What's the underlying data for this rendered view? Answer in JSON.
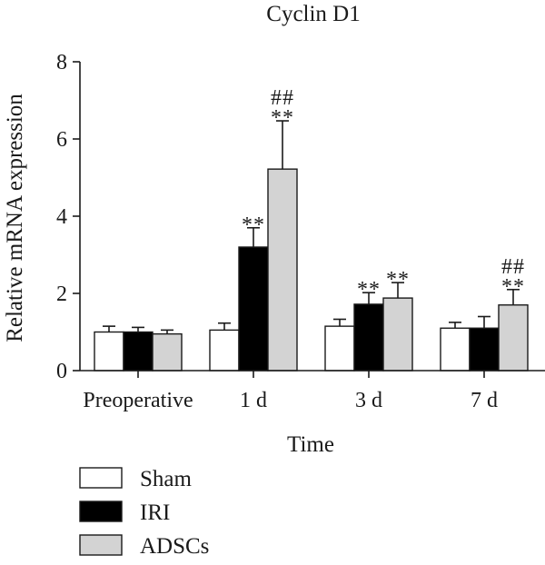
{
  "chart_data": {
    "type": "bar",
    "title": "Cyclin D1",
    "xlabel": "Time",
    "ylabel": "Relative mRNA expression",
    "ylim": [
      0,
      8
    ],
    "yticks": [
      "0",
      "2",
      "4",
      "6",
      "8"
    ],
    "categories": [
      "Preoperative",
      "1 d",
      "3 d",
      "7 d"
    ],
    "series": [
      {
        "name": "Sham",
        "fill": "#ffffff",
        "values": [
          1.0,
          1.05,
          1.15,
          1.1
        ],
        "errors": [
          0.15,
          0.18,
          0.18,
          0.15
        ]
      },
      {
        "name": "IRI",
        "fill": "#000000",
        "values": [
          1.0,
          3.2,
          1.72,
          1.1
        ],
        "errors": [
          0.12,
          0.5,
          0.3,
          0.3
        ]
      },
      {
        "name": "ADSCs",
        "fill": "#d3d3d3",
        "values": [
          0.95,
          5.22,
          1.88,
          1.7
        ],
        "errors": [
          0.1,
          1.25,
          0.4,
          0.4
        ]
      }
    ],
    "annotations": [
      {
        "category": "1 d",
        "series": "IRI",
        "lines": [
          "**"
        ]
      },
      {
        "category": "1 d",
        "series": "ADSCs",
        "lines": [
          "##",
          "**"
        ]
      },
      {
        "category": "3 d",
        "series": "IRI",
        "lines": [
          "**"
        ]
      },
      {
        "category": "3 d",
        "series": "ADSCs",
        "lines": [
          "**"
        ]
      },
      {
        "category": "7 d",
        "series": "ADSCs",
        "lines": [
          "##",
          "**"
        ]
      }
    ],
    "legend_position": "bottom-left"
  }
}
